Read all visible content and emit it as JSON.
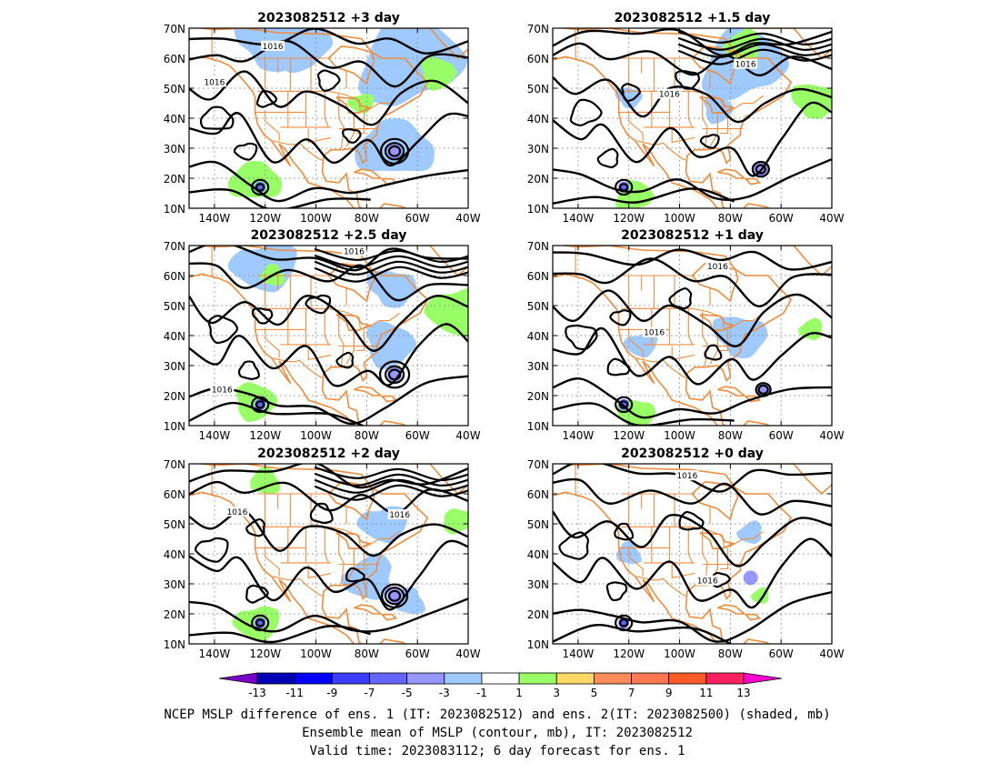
{
  "panels": [
    {
      "title": "2023082512 +3 day",
      "contour_label": "1016"
    },
    {
      "title": "2023082512 +1.5 day",
      "contour_label": "1016"
    },
    {
      "title": "2023082512 +2.5 day",
      "contour_label": "1016"
    },
    {
      "title": "2023082512 +1 day",
      "contour_label": "1016"
    },
    {
      "title": "2023082512 +2 day",
      "contour_label": "1016"
    },
    {
      "title": "2023082512 +0 day",
      "contour_label": "1016"
    }
  ],
  "axes": {
    "lat_ticks": [
      "70N",
      "60N",
      "50N",
      "40N",
      "30N",
      "20N",
      "10N"
    ],
    "lon_ticks": [
      "140W",
      "120W",
      "100W",
      "80W",
      "60W",
      "40W"
    ],
    "lat_range": [
      10,
      70
    ],
    "lon_range": [
      -150,
      -40
    ],
    "grid": "dotted"
  },
  "colorbar": {
    "labels": [
      "-13",
      "-11",
      "-9",
      "-7",
      "-5",
      "-3",
      "-1",
      "1",
      "3",
      "5",
      "7",
      "9",
      "11",
      "13"
    ],
    "colors": [
      "#7a00c8",
      "#0000b4",
      "#0000ff",
      "#3c3cff",
      "#6464ff",
      "#9696ff",
      "#9fcaff",
      "#ffffff",
      "#99ff66",
      "#ffd966",
      "#ff8c5a",
      "#ff7850",
      "#ff5a28",
      "#ff2060",
      "#ff00d0"
    ]
  },
  "caption": {
    "line1": "NCEP MSLP difference of ens. 1 (IT: 2023082512) and ens. 2(IT: 2023082500) (shaded, mb)",
    "line2": "Ensemble mean of MSLP (contour, mb), IT: 2023082512",
    "line3": "Valid time: 2023083112; 6 day forecast for ens. 1"
  },
  "map_colors": {
    "coast": "#f08c3c",
    "contour": "#000000",
    "neg_shade": "#9fcaff",
    "pos_shade": "#99ff66"
  }
}
